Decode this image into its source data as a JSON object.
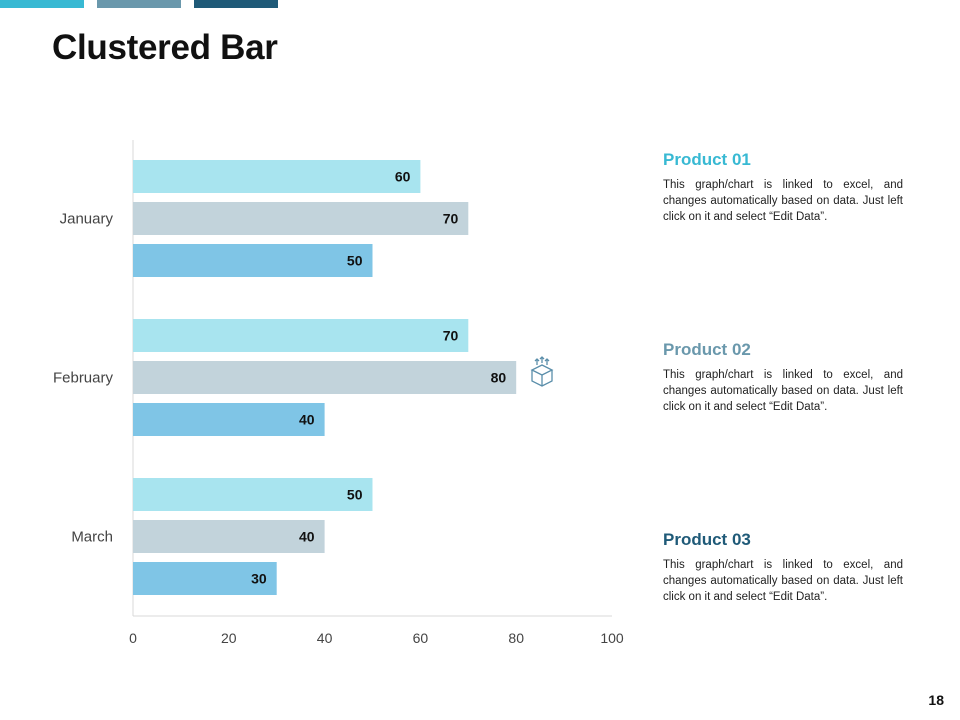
{
  "page": {
    "title": "Clustered Bar",
    "page_number": "18"
  },
  "colors": {
    "accent1": "#38b9d3",
    "accent2": "#6a98ac",
    "accent3": "#1f5a78",
    "bar1": "#a8e4ef",
    "bar2": "#c2d3db",
    "bar3": "#7fc5e6"
  },
  "legend": [
    {
      "name": "Product 01",
      "desc": "This graph/chart is linked to excel, and changes automatically based on data. Just left click on it and select “Edit Data”."
    },
    {
      "name": "Product 02",
      "desc": "This graph/chart is linked to excel, and changes automatically based on data. Just left click on it and select “Edit Data”."
    },
    {
      "name": "Product 03",
      "desc": "This graph/chart is linked to excel, and changes automatically based on data. Just left click on it and select “Edit Data”."
    }
  ],
  "decor": {
    "icon": "cube-icon"
  },
  "chart_data": {
    "type": "bar",
    "orientation": "horizontal",
    "title": "Clustered Bar",
    "categories": [
      "January",
      "February",
      "March"
    ],
    "series": [
      {
        "name": "Product 01",
        "values": [
          60,
          70,
          50
        ]
      },
      {
        "name": "Product 02",
        "values": [
          70,
          80,
          40
        ]
      },
      {
        "name": "Product 03",
        "values": [
          50,
          40,
          30
        ]
      }
    ],
    "xlim": [
      0,
      100
    ],
    "xticks": [
      0,
      20,
      40,
      60,
      80,
      100
    ],
    "xlabel": "",
    "ylabel": "",
    "grid": false,
    "legend": "right"
  }
}
